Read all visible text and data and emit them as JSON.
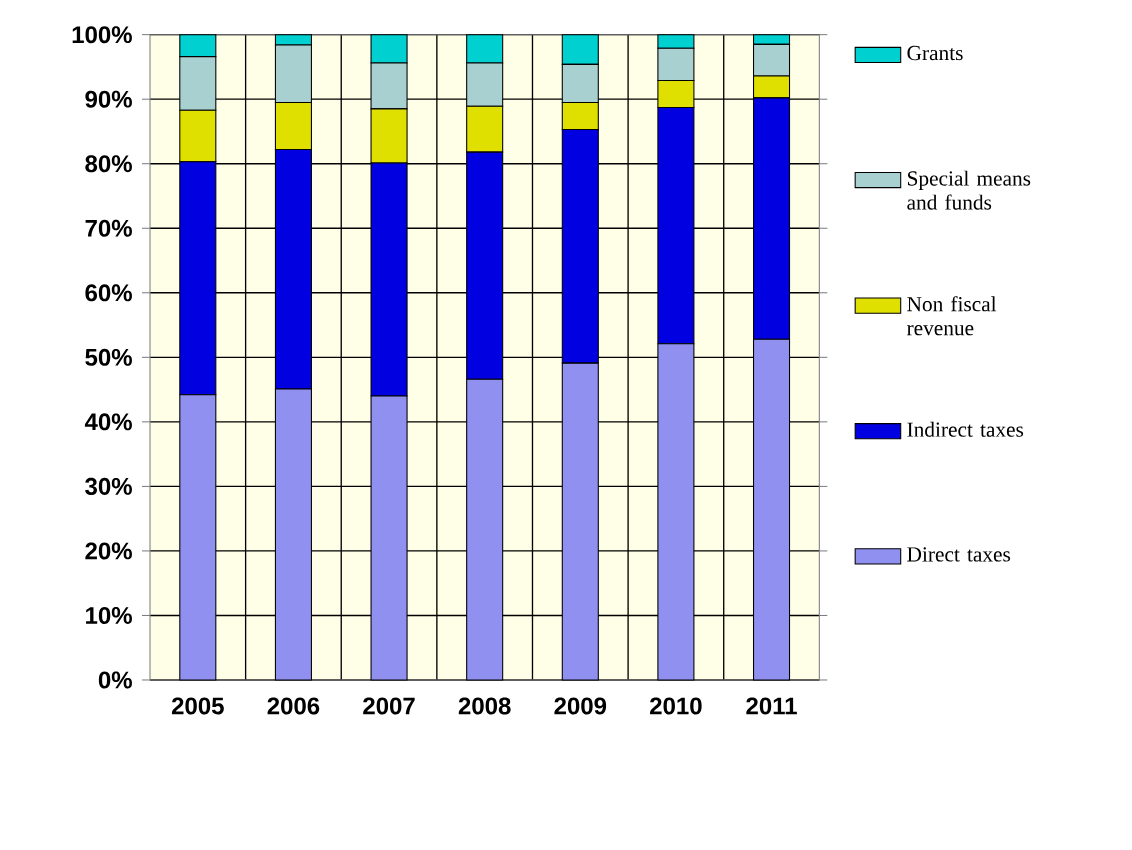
{
  "chart_data": {
    "type": "bar",
    "stacked": true,
    "categories": [
      "2005",
      "2006",
      "2007",
      "2008",
      "2009",
      "2010",
      "2011"
    ],
    "ylim": [
      0,
      100
    ],
    "yticks": [
      {
        "value": 0,
        "label": "0%"
      },
      {
        "value": 10,
        "label": "10%"
      },
      {
        "value": 20,
        "label": "20%"
      },
      {
        "value": 30,
        "label": "30%"
      },
      {
        "value": 40,
        "label": "40%"
      },
      {
        "value": 50,
        "label": "50%"
      },
      {
        "value": 60,
        "label": "60%"
      },
      {
        "value": 70,
        "label": "70%"
      },
      {
        "value": 80,
        "label": "80%"
      },
      {
        "value": 90,
        "label": "90%"
      },
      {
        "value": 100,
        "label": "100%"
      }
    ],
    "grid": true,
    "legend": "right",
    "series": [
      {
        "name": "Direct taxes",
        "color": "#9090f0",
        "values": [
          44.2,
          45.1,
          44.0,
          46.6,
          49.1,
          52.1,
          52.8
        ]
      },
      {
        "name": "Indirect taxes",
        "color": "#0000e0",
        "values": [
          36.1,
          37.1,
          36.1,
          35.2,
          36.2,
          36.6,
          37.4
        ]
      },
      {
        "name": "Non fiscal revenue",
        "color": "#e0e000",
        "values": [
          8.0,
          7.3,
          8.4,
          7.1,
          4.2,
          4.2,
          3.4
        ]
      },
      {
        "name": "Special means and funds",
        "color": "#a8d0d0",
        "values": [
          8.3,
          8.9,
          7.1,
          6.7,
          5.9,
          5.0,
          4.9
        ]
      },
      {
        "name": "Grants",
        "color": "#00d0d0",
        "values": [
          3.4,
          1.6,
          4.4,
          4.4,
          4.6,
          2.1,
          1.5
        ]
      }
    ]
  }
}
